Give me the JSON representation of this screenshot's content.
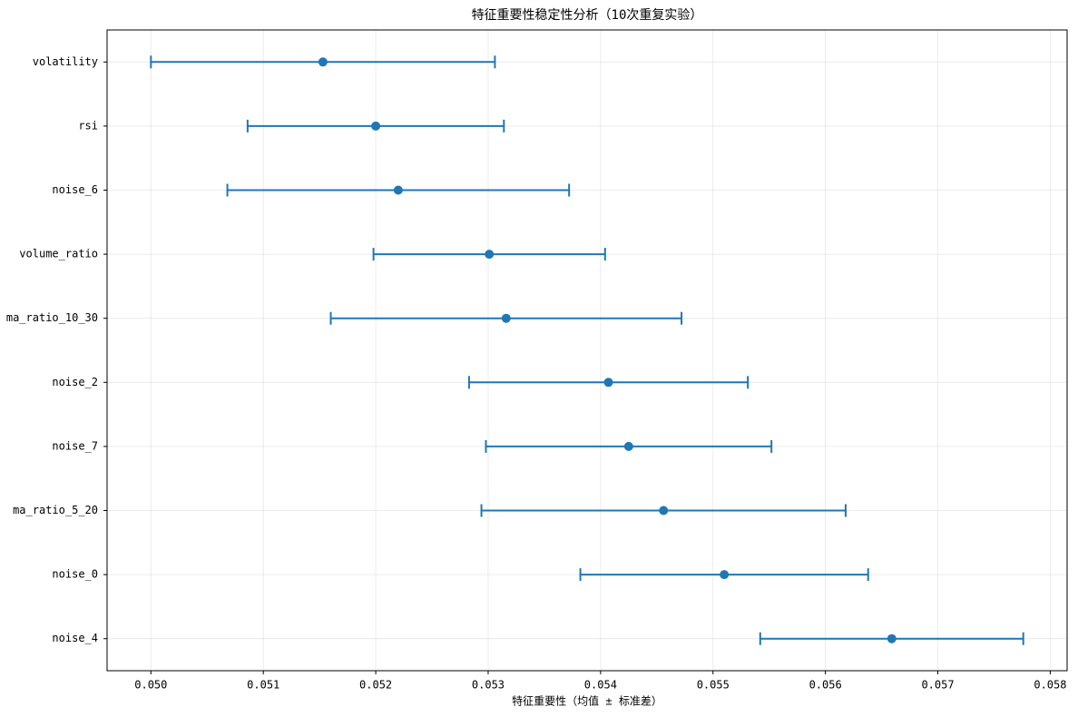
{
  "chart_data": {
    "type": "errorbar",
    "title": "特征重要性稳定性分析（10次重复实验）",
    "x_label": "特征重要性（均值 ± 标准差）",
    "categories": [
      "volatility",
      "rsi",
      "noise_6",
      "volume_ratio",
      "ma_ratio_10_30",
      "noise_2",
      "noise_7",
      "ma_ratio_5_20",
      "noise_0",
      "noise_4"
    ],
    "series": [
      {
        "color": "#1f77b4",
        "values": [
          0.05153,
          0.052,
          0.0522,
          0.05301,
          0.05316,
          0.05407,
          0.05425,
          0.05456,
          0.0551,
          0.05659
        ],
        "errors": [
          0.00153,
          0.00114,
          0.00152,
          0.00103,
          0.00156,
          0.00124,
          0.00127,
          0.00162,
          0.00128,
          0.00117
        ]
      }
    ],
    "xlim": [
      0.04961,
      0.05815
    ],
    "xticks": [
      {
        "value": 0.05,
        "label": "0.050"
      },
      0.051,
      0.052,
      0.053,
      0.054,
      0.055,
      0.056,
      0.057,
      0.058
    ],
    "grid": true
  }
}
